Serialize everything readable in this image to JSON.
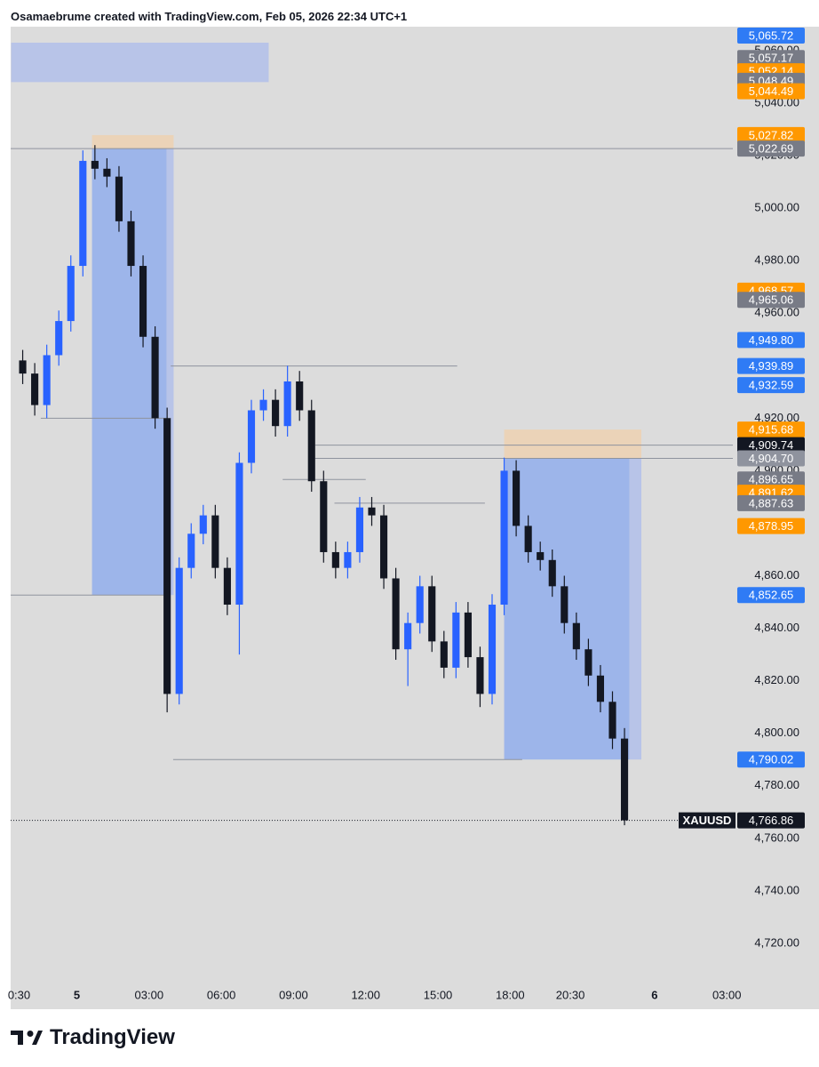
{
  "header": "Osamaebrume created with TradingView.com, Feb 05, 2026 22:34 UTC+1",
  "footer": "TradingView",
  "chart_data": {
    "type": "candlestick",
    "symbol": "XAUUSD",
    "up_color": "#2962ff",
    "down_color": "#131722",
    "xlim": [
      -2.75,
      27.25
    ],
    "ylim": [
      4705.1,
      5069.1
    ],
    "xticks": [
      {
        "value": -2.4,
        "label": "0:30"
      },
      {
        "value": 0,
        "label": "5"
      },
      {
        "value": 3,
        "label": "03:00"
      },
      {
        "value": 6,
        "label": "06:00"
      },
      {
        "value": 9,
        "label": "09:00"
      },
      {
        "value": 12,
        "label": "12:00"
      },
      {
        "value": 15,
        "label": "15:00"
      },
      {
        "value": 18,
        "label": "18:00"
      },
      {
        "value": 20.5,
        "label": "20:30"
      },
      {
        "value": 24,
        "label": "6"
      },
      {
        "value": 27,
        "label": "03:00"
      }
    ],
    "yticks": [
      {
        "value": 4720,
        "label": "4,720.00"
      },
      {
        "value": 4740,
        "label": "4,740.00"
      },
      {
        "value": 4760,
        "label": "4,760.00"
      },
      {
        "value": 4780,
        "label": "4,780.00"
      },
      {
        "value": 4800,
        "label": "4,800.00"
      },
      {
        "value": 4820,
        "label": "4,820.00"
      },
      {
        "value": 4840,
        "label": "4,840.00"
      },
      {
        "value": 4860,
        "label": "4,860.00"
      },
      {
        "value": 4880,
        "label": "4,880.00"
      },
      {
        "value": 4900,
        "label": "4,900.00"
      },
      {
        "value": 4920,
        "label": "4,920.00"
      },
      {
        "value": 4940,
        "label": "4,940.00"
      },
      {
        "value": 4960,
        "label": "4,960.00"
      },
      {
        "value": 4980,
        "label": "4,980.00"
      },
      {
        "value": 5000,
        "label": "5,000.00"
      },
      {
        "value": 5020,
        "label": "5,020.00"
      },
      {
        "value": 5040,
        "label": "5,040.00"
      },
      {
        "value": 5060,
        "label": "5,060.00"
      }
    ],
    "x": [
      -2.25,
      -1.75,
      -1.25,
      -0.75,
      -0.25,
      0.25,
      0.75,
      1.25,
      1.75,
      2.25,
      2.75,
      3.25,
      3.75,
      4.25,
      4.75,
      5.25,
      5.75,
      6.25,
      6.75,
      7.25,
      7.75,
      8.25,
      8.75,
      9.25,
      9.75,
      10.25,
      10.75,
      11.25,
      11.75,
      12.25,
      12.75,
      13.25,
      13.75,
      14.25,
      14.75,
      15.25,
      15.75,
      16.25,
      16.75,
      17.25,
      17.75,
      18.25,
      18.75,
      19.25,
      19.75,
      20.25,
      20.75,
      21.25,
      21.75,
      22.25,
      22.75
    ],
    "open": [
      4942,
      4937,
      4925,
      4944,
      4957,
      4978,
      5018,
      5015,
      5012,
      4995,
      4978,
      4951,
      4920,
      4815,
      4863,
      4876,
      4883,
      4863,
      4849,
      4903,
      4923,
      4927,
      4917,
      4934,
      4923,
      4896,
      4869,
      4863,
      4869,
      4886,
      4883,
      4859,
      4832,
      4842,
      4856,
      4835,
      4825,
      4846,
      4829,
      4815,
      4849,
      4900,
      4879,
      4869,
      4866,
      4856,
      4842,
      4832,
      4822,
      4812,
      4798
    ],
    "high": [
      4946,
      4941,
      4948,
      4961,
      4982,
      5022,
      5024,
      5019,
      5016,
      4999,
      4982,
      4955,
      4924,
      4867,
      4880,
      4887,
      4887,
      4867,
      4907,
      4927,
      4931,
      4931,
      4940,
      4938,
      4927,
      4900,
      4873,
      4873,
      4890,
      4890,
      4887,
      4863,
      4846,
      4860,
      4860,
      4839,
      4850,
      4850,
      4833,
      4853,
      4905,
      4904,
      4883,
      4873,
      4870,
      4860,
      4846,
      4836,
      4826,
      4816,
      4802
    ],
    "low": [
      4933,
      4921,
      4920,
      4940,
      4953,
      4974,
      5011,
      5008,
      4991,
      4974,
      4947,
      4916,
      4808,
      4811,
      4859,
      4872,
      4859,
      4845,
      4830,
      4899,
      4919,
      4913,
      4913,
      4919,
      4892,
      4865,
      4859,
      4859,
      4865,
      4879,
      4855,
      4828,
      4818,
      4838,
      4831,
      4821,
      4821,
      4825,
      4810,
      4811,
      4845,
      4875,
      4865,
      4862,
      4852,
      4838,
      4828,
      4818,
      4808,
      4794,
      4765
    ],
    "close": [
      4937,
      4925,
      4944,
      4957,
      4978,
      5018,
      5015,
      5012,
      4995,
      4978,
      4951,
      4920,
      4815,
      4863,
      4876,
      4883,
      4863,
      4849,
      4903,
      4923,
      4927,
      4917,
      4934,
      4923,
      4896,
      4869,
      4863,
      4869,
      4886,
      4883,
      4859,
      4832,
      4842,
      4856,
      4835,
      4825,
      4846,
      4829,
      4815,
      4849,
      4900,
      4879,
      4869,
      4866,
      4856,
      4842,
      4832,
      4822,
      4812,
      4798,
      4766.86
    ],
    "zones": [
      {
        "x": [
          -2.73,
          7.97
        ],
        "y": [
          5063,
          5048
        ],
        "color": "#b8c4e8"
      },
      {
        "x": [
          0.63,
          4.02
        ],
        "y": [
          5027.82,
          5022.69
        ],
        "color": "#ebd3b8"
      },
      {
        "x": [
          0.63,
          3.73
        ],
        "y": [
          5022.69,
          4852.65
        ],
        "color": "#9db5ea"
      },
      {
        "x": [
          3.73,
          4.02
        ],
        "y": [
          5022.69,
          4852.65
        ],
        "color": "#b8c4e8"
      },
      {
        "x": [
          17.75,
          23.45
        ],
        "y": [
          4915.68,
          4904.7
        ],
        "color": "#ebd3b8"
      },
      {
        "x": [
          17.75,
          22.95
        ],
        "y": [
          4904.7,
          4790.02
        ],
        "color": "#9db5ea"
      },
      {
        "x": [
          22.95,
          23.45
        ],
        "y": [
          4904.7,
          4790.02
        ],
        "color": "#b8c4e8"
      }
    ],
    "levels": [
      {
        "value": 5022.69,
        "x": [
          -2.75,
          27.25
        ]
      },
      {
        "value": 4939.89,
        "x": [
          3.9,
          15.8
        ]
      },
      {
        "value": 4920,
        "x": [
          -1.5,
          3.9
        ]
      },
      {
        "value": 4909.74,
        "x": [
          9.9,
          27.25
        ]
      },
      {
        "value": 4904.7,
        "x": [
          9.9,
          27.25
        ]
      },
      {
        "value": 4896.65,
        "x": [
          8.55,
          12.0
        ]
      },
      {
        "value": 4887.63,
        "x": [
          10.7,
          16.95
        ]
      },
      {
        "value": 4852.65,
        "x": [
          -2.75,
          3.73
        ]
      },
      {
        "value": 4790.02,
        "x": [
          4.0,
          18.5
        ]
      }
    ],
    "price_labels": [
      {
        "value": 5065.72,
        "label": "5,065.72",
        "color": "#2f7bf5"
      },
      {
        "value": 5057.17,
        "label": "5,057.17",
        "color": "#787b86"
      },
      {
        "value": 5052.14,
        "label": "5,052.14",
        "color": "#ff9800"
      },
      {
        "value": 5048.49,
        "label": "5,048.49",
        "color": "#787b86"
      },
      {
        "value": 5044.49,
        "label": "5,044.49",
        "color": "#ff9800"
      },
      {
        "value": 5027.82,
        "label": "5,027.82",
        "color": "#ff9800"
      },
      {
        "value": 5022.69,
        "label": "5,022.69",
        "color": "#787b86"
      },
      {
        "value": 4968.57,
        "label": "4,968.57",
        "color": "#ff9800"
      },
      {
        "value": 4965.06,
        "label": "4,965.06",
        "color": "#787b86"
      },
      {
        "value": 4949.8,
        "label": "4,949.80",
        "color": "#2f7bf5"
      },
      {
        "value": 4939.89,
        "label": "4,939.89",
        "color": "#2f7bf5"
      },
      {
        "value": 4932.59,
        "label": "4,932.59",
        "color": "#2f7bf5"
      },
      {
        "value": 4915.68,
        "label": "4,915.68",
        "color": "#ff9800"
      },
      {
        "value": 4909.74,
        "label": "4,909.74",
        "color": "#131722"
      },
      {
        "value": 4904.7,
        "label": "4,904.70",
        "color": "#8f939e"
      },
      {
        "value": 4896.65,
        "label": "4,896.65",
        "color": "#787b86"
      },
      {
        "value": 4891.62,
        "label": "4,891.62",
        "color": "#ff9800"
      },
      {
        "value": 4887.63,
        "label": "4,887.63",
        "color": "#787b86"
      },
      {
        "value": 4878.95,
        "label": "4,878.95",
        "color": "#ff9800"
      },
      {
        "value": 4852.65,
        "label": "4,852.65",
        "color": "#2f7bf5"
      },
      {
        "value": 4790.02,
        "label": "4,790.02",
        "color": "#2f7bf5"
      }
    ],
    "last_price": {
      "value": 4766.86,
      "label": "4,766.86"
    }
  }
}
